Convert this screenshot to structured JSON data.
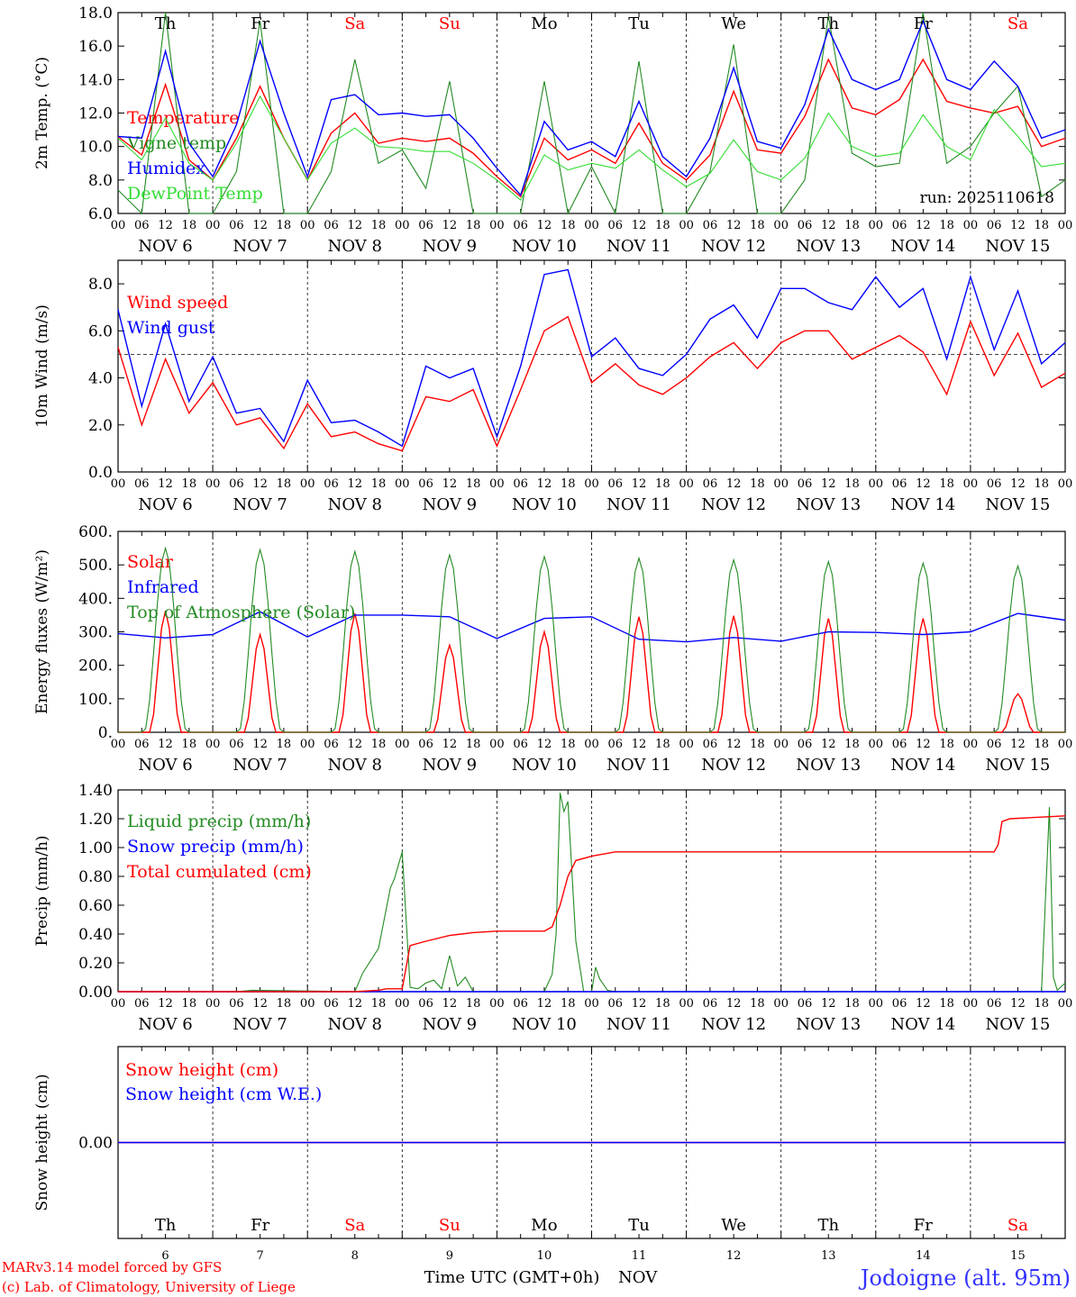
{
  "chart_data": [
    {
      "type": "line",
      "panel": "temperature",
      "ylabel": "2m Temp. (°C)",
      "ylim": [
        6.0,
        18.0
      ],
      "ytick_labels": [
        "6.0",
        "8.0",
        "10.0",
        "12.0",
        "14.0",
        "16.0",
        "18.0"
      ],
      "run_label": "run: 2025110618",
      "legend_placement": "top-left",
      "series": [
        {
          "name": "Temperature",
          "color": "#ff0000",
          "x": [
            0,
            6,
            12,
            18,
            24,
            30,
            36,
            42,
            48,
            54,
            60,
            66,
            72,
            78,
            84,
            90,
            96,
            102,
            108,
            114,
            120,
            126,
            132,
            138,
            144,
            150,
            156,
            162,
            168,
            174,
            180,
            186,
            192,
            198,
            204,
            210,
            216,
            222,
            228,
            234,
            240
          ],
          "y": [
            10.6,
            9.5,
            13.7,
            9.2,
            8.0,
            10.5,
            13.6,
            10.5,
            8.0,
            10.8,
            12.0,
            10.2,
            10.5,
            10.3,
            10.5,
            9.6,
            8.2,
            7.0,
            10.5,
            9.2,
            9.8,
            9.0,
            11.4,
            9.0,
            8.0,
            9.5,
            13.3,
            9.8,
            9.6,
            11.8,
            15.2,
            12.3,
            11.9,
            12.8,
            15.2,
            12.7,
            12.3,
            12.0,
            12.4,
            10.0,
            10.5
          ]
        },
        {
          "name": "Vigne temp",
          "color": "#228b22",
          "x": [
            0,
            6,
            12,
            18,
            24,
            30,
            36,
            42,
            48,
            54,
            60,
            66,
            72,
            78,
            84,
            90,
            96,
            102,
            108,
            114,
            120,
            126,
            132,
            138,
            144,
            150,
            156,
            162,
            168,
            174,
            180,
            186,
            192,
            198,
            204,
            210,
            216,
            222,
            228,
            234,
            240
          ],
          "y": [
            7.4,
            6.0,
            18.0,
            6.0,
            6.0,
            8.5,
            17.5,
            6.0,
            6.0,
            8.5,
            15.2,
            9.0,
            9.8,
            7.5,
            13.9,
            6.0,
            6.0,
            6.0,
            13.9,
            6.0,
            8.8,
            6.0,
            15.1,
            6.0,
            6.0,
            8.5,
            16.1,
            6.0,
            6.0,
            8.0,
            17.8,
            9.6,
            8.8,
            9.0,
            18.0,
            9.0,
            10.0,
            12.0,
            13.6,
            7.0,
            8.0
          ]
        },
        {
          "name": "Humidex",
          "color": "#0000ff",
          "x": [
            0,
            6,
            12,
            18,
            24,
            30,
            36,
            42,
            48,
            54,
            60,
            66,
            72,
            78,
            84,
            90,
            96,
            102,
            108,
            114,
            120,
            126,
            132,
            138,
            144,
            150,
            156,
            162,
            168,
            174,
            180,
            186,
            192,
            198,
            204,
            210,
            216,
            222,
            228,
            234,
            240
          ],
          "y": [
            10.6,
            10.5,
            15.7,
            10.2,
            8.2,
            11.3,
            16.3,
            12.0,
            8.2,
            12.8,
            13.1,
            11.9,
            12.0,
            11.8,
            11.9,
            10.5,
            8.7,
            7.1,
            11.5,
            9.8,
            10.3,
            9.4,
            12.7,
            9.4,
            8.2,
            10.5,
            14.7,
            10.3,
            9.9,
            12.5,
            17.0,
            14.0,
            13.4,
            14.0,
            17.5,
            14.0,
            13.4,
            15.1,
            13.6,
            10.5,
            11.0
          ]
        },
        {
          "name": "DewPoint Temp",
          "color": "#33dd33",
          "x": [
            0,
            6,
            12,
            18,
            24,
            30,
            36,
            42,
            48,
            54,
            60,
            66,
            72,
            78,
            84,
            90,
            96,
            102,
            108,
            114,
            120,
            126,
            132,
            138,
            144,
            150,
            156,
            162,
            168,
            174,
            180,
            186,
            192,
            198,
            204,
            210,
            216,
            222,
            228,
            234,
            240
          ],
          "y": [
            10.5,
            9.2,
            11.7,
            9.0,
            8.0,
            10.2,
            13.0,
            10.5,
            8.0,
            10.2,
            11.1,
            10.0,
            9.9,
            9.7,
            9.7,
            9.0,
            8.0,
            6.8,
            9.5,
            8.6,
            9.0,
            8.7,
            9.8,
            8.6,
            7.6,
            8.4,
            10.4,
            8.5,
            8.0,
            9.3,
            12.0,
            10.0,
            9.4,
            9.6,
            11.9,
            10.0,
            9.2,
            12.2,
            10.6,
            8.8,
            9.0
          ]
        }
      ]
    },
    {
      "type": "line",
      "panel": "wind",
      "ylabel": "10m Wind (m/s)",
      "ylim": [
        0.0,
        9.0
      ],
      "ytick_labels": [
        "0.0",
        "2.0",
        "4.0",
        "6.0",
        "8.0"
      ],
      "reference_line": 5.0,
      "legend_placement": "top-left",
      "series": [
        {
          "name": "Wind speed",
          "color": "#ff0000",
          "x": [
            0,
            6,
            12,
            18,
            24,
            30,
            36,
            42,
            48,
            54,
            60,
            66,
            72,
            78,
            84,
            90,
            96,
            102,
            108,
            114,
            120,
            126,
            132,
            138,
            144,
            150,
            156,
            162,
            168,
            174,
            180,
            186,
            192,
            198,
            204,
            210,
            216,
            222,
            228,
            234,
            240
          ],
          "y": [
            5.3,
            2.0,
            4.8,
            2.5,
            3.8,
            2.0,
            2.3,
            1.0,
            2.9,
            1.5,
            1.7,
            1.2,
            0.9,
            3.2,
            3.0,
            3.5,
            1.1,
            3.5,
            6.0,
            6.6,
            3.8,
            4.6,
            3.7,
            3.3,
            4.0,
            4.9,
            5.5,
            4.4,
            5.5,
            6.0,
            6.0,
            4.8,
            5.3,
            5.8,
            5.1,
            3.3,
            6.4,
            4.1,
            5.9,
            3.6,
            4.2
          ]
        },
        {
          "name": "Wind gust",
          "color": "#0000ff",
          "x": [
            0,
            6,
            12,
            18,
            24,
            30,
            36,
            42,
            48,
            54,
            60,
            66,
            72,
            78,
            84,
            90,
            96,
            102,
            108,
            114,
            120,
            126,
            132,
            138,
            144,
            150,
            156,
            162,
            168,
            174,
            180,
            186,
            192,
            198,
            204,
            210,
            216,
            222,
            228,
            234,
            240
          ],
          "y": [
            6.9,
            2.8,
            6.3,
            3.0,
            4.9,
            2.5,
            2.7,
            1.3,
            3.9,
            2.1,
            2.2,
            1.7,
            1.1,
            4.5,
            4.0,
            4.4,
            1.5,
            4.5,
            8.4,
            8.6,
            4.9,
            5.7,
            4.4,
            4.1,
            5.0,
            6.5,
            7.1,
            5.7,
            7.8,
            7.8,
            7.2,
            6.9,
            8.3,
            7.0,
            7.8,
            4.8,
            8.3,
            5.2,
            7.7,
            4.6,
            5.5
          ]
        }
      ]
    },
    {
      "type": "line",
      "panel": "energy",
      "ylabel": "Energy fluxes (W/m²)",
      "ylim": [
        0,
        600
      ],
      "ytick_labels": [
        "0.",
        "100.",
        "200.",
        "300.",
        "400.",
        "500.",
        "600."
      ],
      "legend_placement": "top-left",
      "series": [
        {
          "name": "Solar",
          "color": "#ff0000",
          "daily_peaks": [
            363,
            292,
            355,
            260,
            300,
            345,
            348,
            340,
            340,
            115
          ]
        },
        {
          "name": "Infrared",
          "color": "#0000ff",
          "x": [
            0,
            12,
            24,
            36,
            48,
            60,
            72,
            84,
            96,
            108,
            120,
            132,
            144,
            156,
            168,
            180,
            192,
            204,
            216,
            228,
            240
          ],
          "y": [
            295,
            282,
            292,
            360,
            285,
            350,
            350,
            345,
            280,
            340,
            345,
            278,
            270,
            283,
            272,
            300,
            298,
            292,
            300,
            355,
            335
          ]
        },
        {
          "name": "Top of Atmosphere (Solar)",
          "color": "#228b22",
          "daily_peaks": [
            550,
            545,
            540,
            530,
            525,
            520,
            515,
            510,
            505,
            497
          ]
        }
      ]
    },
    {
      "type": "line",
      "panel": "precip",
      "ylabel": "Precip (mm/h)",
      "ylim": [
        0.0,
        1.4
      ],
      "ytick_labels": [
        "0.00",
        "0.20",
        "0.40",
        "0.60",
        "0.80",
        "1.00",
        "1.20",
        "1.40"
      ],
      "legend_placement": "top-left",
      "series": [
        {
          "name": "Liquid precip (mm/h)",
          "color": "#228b22",
          "x": [
            0,
            30,
            34,
            60,
            62,
            66,
            69,
            70,
            72,
            74,
            76,
            78,
            80,
            82,
            84,
            86,
            88,
            90,
            108,
            110,
            111,
            112,
            113,
            114,
            116,
            118,
            120,
            121,
            122,
            124,
            126,
            234,
            236,
            237,
            238,
            240
          ],
          "y": [
            0,
            0,
            0.01,
            0,
            0.13,
            0.3,
            0.72,
            0.78,
            0.97,
            0.03,
            0.02,
            0.06,
            0.08,
            0.02,
            0.25,
            0.04,
            0.1,
            0,
            0,
            0.12,
            0.4,
            1.38,
            1.25,
            1.32,
            0.35,
            0,
            0,
            0.17,
            0.09,
            0.01,
            0,
            0,
            1.28,
            0.1,
            0.01,
            0.06
          ]
        },
        {
          "name": "Snow precip (mm/h)",
          "color": "#0000ff",
          "x": [
            0,
            240
          ],
          "y": [
            0,
            0
          ]
        },
        {
          "name": "Total cumulated (cm)",
          "color": "#ff0000",
          "x": [
            0,
            60,
            66,
            68,
            72,
            74,
            78,
            84,
            90,
            96,
            108,
            110,
            112,
            114,
            116,
            120,
            126,
            210,
            222,
            223,
            224,
            226,
            240
          ],
          "y": [
            0,
            0,
            0.01,
            0.02,
            0.02,
            0.32,
            0.35,
            0.39,
            0.41,
            0.42,
            0.42,
            0.45,
            0.6,
            0.8,
            0.91,
            0.94,
            0.97,
            0.97,
            0.97,
            1.02,
            1.18,
            1.2,
            1.22
          ]
        }
      ]
    },
    {
      "type": "line",
      "panel": "snow",
      "ylabel": "Snow height (cm)",
      "ylim": [
        -0.1,
        0.1
      ],
      "ytick_labels": [
        "0.00"
      ],
      "legend_placement": "top-left",
      "series": [
        {
          "name": "Snow height (cm)",
          "color": "#ff0000",
          "x": [
            0,
            240
          ],
          "y": [
            0,
            0
          ]
        },
        {
          "name": "Snow height (cm W.E.)",
          "color": "#0000ff",
          "x": [
            0,
            240
          ],
          "y": [
            0,
            0
          ]
        }
      ]
    }
  ],
  "x_hour_ticks": [
    "00",
    "06",
    "12",
    "18"
  ],
  "x_hour_end": "00",
  "dates": [
    "NOV 6",
    "NOV 7",
    "NOV 8",
    "NOV 9",
    "NOV 10",
    "NOV 11",
    "NOV 12",
    "NOV 13",
    "NOV 14",
    "NOV 15"
  ],
  "weekdays": [
    "Th",
    "Fr",
    "Sa",
    "Su",
    "Mo",
    "Tu",
    "We",
    "Th",
    "Fr",
    "Sa"
  ],
  "weekday_colors": [
    "#000000",
    "#000000",
    "#ff0000",
    "#ff0000",
    "#000000",
    "#000000",
    "#000000",
    "#000000",
    "#000000",
    "#ff0000"
  ],
  "day_numbers": [
    "6",
    "7",
    "8",
    "9",
    "10",
    "11",
    "12",
    "13",
    "14",
    "15"
  ],
  "footer": {
    "model": "MARv3.14 model forced by GFS",
    "lab": "(c) Lab. of Climatology, University of Liege",
    "xtitle": "Time UTC (GMT+0h)",
    "month": "NOV",
    "station": "Jodoigne (alt. 95m)",
    "footer_color": "#ff0000",
    "station_color": "#3333ff"
  }
}
